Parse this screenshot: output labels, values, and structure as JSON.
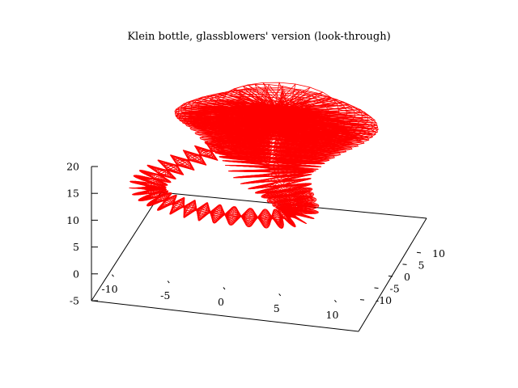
{
  "chart_data": {
    "type": "surface-3d-wireframe",
    "title": "Klein bottle, glassblowers' version (look-through)",
    "xlabel": "",
    "ylabel": "",
    "zlabel": "",
    "x_ticks": [
      "-10",
      "-5",
      "0",
      "5",
      "10"
    ],
    "y_ticks": [
      "-10",
      "-5",
      "0",
      "5",
      "10"
    ],
    "z_ticks": [
      "-5",
      "0",
      "5",
      "10",
      "15",
      "20"
    ],
    "x_range": [
      -12,
      12
    ],
    "y_range": [
      -12,
      12
    ],
    "z_range": [
      -5,
      20
    ],
    "hidden_line_removal": false,
    "grid": false,
    "line_color": "#ff0000",
    "axis_color": "#000000"
  }
}
